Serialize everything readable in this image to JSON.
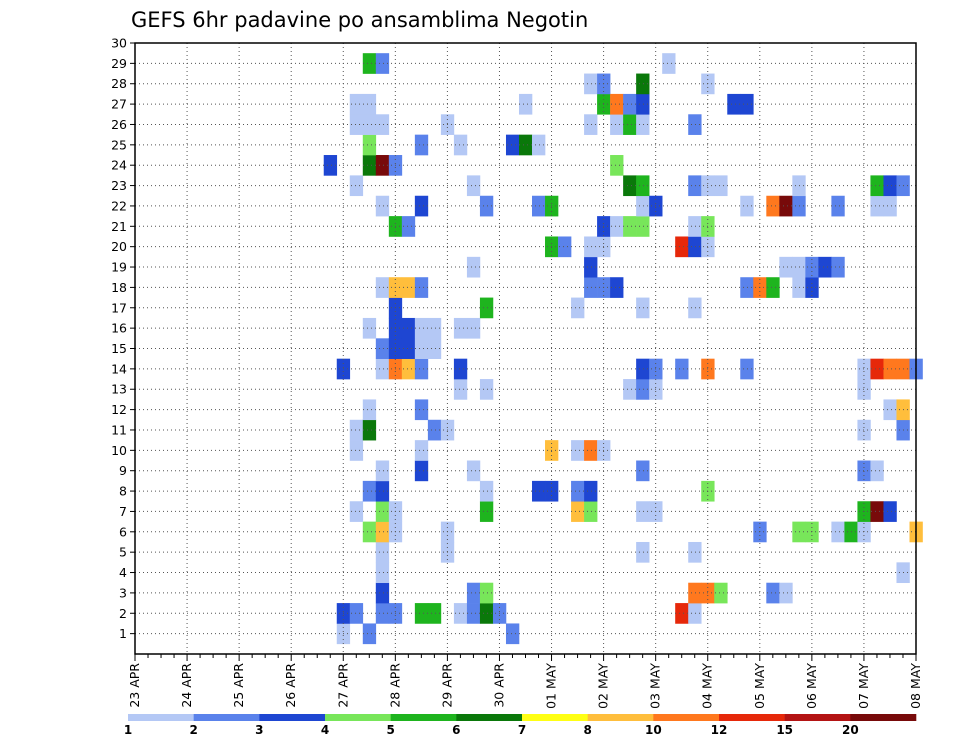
{
  "chart_data": {
    "type": "heatmap",
    "title": "GEFS 6hr padavine po ansamblima Negotin",
    "x_tick_labels": [
      "23 APR",
      "24 APR",
      "25 APR",
      "26 APR",
      "27 APR",
      "28 APR",
      "29 APR",
      "30 APR",
      "01 MAY",
      "02 MAY",
      "03 MAY",
      "04 MAY",
      "05 MAY",
      "06 MAY",
      "07 MAY",
      "08 MAY"
    ],
    "y_tick_labels": [
      "1",
      "2",
      "3",
      "4",
      "5",
      "6",
      "7",
      "8",
      "9",
      "10",
      "11",
      "12",
      "13",
      "14",
      "15",
      "16",
      "17",
      "18",
      "19",
      "20",
      "21",
      "22",
      "23",
      "24",
      "25",
      "26",
      "27",
      "28",
      "29",
      "30"
    ],
    "x_step_hours": 6,
    "ensemble_range": [
      1,
      30
    ],
    "grid": "dotted",
    "colorbar": {
      "position": "bottom",
      "levels": [
        "1",
        "2",
        "3",
        "4",
        "5",
        "6",
        "7",
        "8",
        "10",
        "12",
        "15",
        "20"
      ],
      "colors": [
        "#b4c8f5",
        "#5a82eb",
        "#1e46d2",
        "#78e65a",
        "#1eb41e",
        "#0a780a",
        "#ffff14",
        "#ffbe3c",
        "#ff781e",
        "#e6280a",
        "#b41414",
        "#780a0a"
      ]
    },
    "cells": [
      [
        0,
        16,
        1
      ],
      [
        0,
        18,
        2
      ],
      [
        0,
        29,
        2
      ],
      [
        1,
        16,
        3
      ],
      [
        1,
        17,
        2
      ],
      [
        1,
        19,
        2
      ],
      [
        1,
        20,
        2
      ],
      [
        1,
        22,
        5
      ],
      [
        1,
        23,
        5
      ],
      [
        1,
        25,
        1
      ],
      [
        1,
        26,
        2
      ],
      [
        1,
        27,
        6
      ],
      [
        1,
        28,
        2
      ],
      [
        1,
        42,
        12
      ],
      [
        1,
        43,
        1
      ],
      [
        2,
        19,
        3
      ],
      [
        2,
        26,
        2
      ],
      [
        2,
        27,
        4
      ],
      [
        2,
        43,
        10
      ],
      [
        2,
        44,
        10
      ],
      [
        2,
        45,
        4
      ],
      [
        2,
        49,
        2
      ],
      [
        2,
        50,
        1
      ],
      [
        3,
        19,
        1
      ],
      [
        3,
        59,
        1
      ],
      [
        4,
        19,
        1
      ],
      [
        4,
        24,
        1
      ],
      [
        4,
        39,
        1
      ],
      [
        4,
        43,
        1
      ],
      [
        5,
        18,
        4
      ],
      [
        5,
        19,
        8
      ],
      [
        5,
        20,
        1
      ],
      [
        5,
        24,
        1
      ],
      [
        5,
        48,
        2
      ],
      [
        5,
        51,
        4
      ],
      [
        5,
        52,
        4
      ],
      [
        5,
        54,
        1
      ],
      [
        5,
        55,
        5
      ],
      [
        5,
        56,
        1
      ],
      [
        5,
        60,
        8
      ],
      [
        6,
        17,
        1
      ],
      [
        6,
        19,
        4
      ],
      [
        6,
        20,
        1
      ],
      [
        6,
        27,
        5
      ],
      [
        6,
        34,
        8
      ],
      [
        6,
        35,
        4
      ],
      [
        6,
        39,
        1
      ],
      [
        6,
        40,
        1
      ],
      [
        6,
        56,
        5
      ],
      [
        6,
        57,
        20
      ],
      [
        6,
        58,
        3
      ],
      [
        7,
        18,
        2
      ],
      [
        7,
        19,
        3
      ],
      [
        7,
        27,
        1
      ],
      [
        7,
        31,
        3
      ],
      [
        7,
        32,
        3
      ],
      [
        7,
        34,
        2
      ],
      [
        7,
        35,
        3
      ],
      [
        7,
        44,
        4
      ],
      [
        8,
        19,
        1
      ],
      [
        8,
        22,
        3
      ],
      [
        8,
        26,
        1
      ],
      [
        8,
        39,
        2
      ],
      [
        8,
        56,
        2
      ],
      [
        8,
        57,
        1
      ],
      [
        9,
        17,
        1
      ],
      [
        9,
        22,
        1
      ],
      [
        9,
        32,
        8
      ],
      [
        9,
        34,
        1
      ],
      [
        9,
        35,
        10
      ],
      [
        9,
        36,
        1
      ],
      [
        10,
        17,
        1
      ],
      [
        10,
        18,
        6
      ],
      [
        10,
        23,
        2
      ],
      [
        10,
        24,
        1
      ],
      [
        10,
        56,
        1
      ],
      [
        10,
        59,
        2
      ],
      [
        11,
        18,
        1
      ],
      [
        11,
        22,
        2
      ],
      [
        11,
        58,
        1
      ],
      [
        11,
        59,
        8
      ],
      [
        12,
        25,
        1
      ],
      [
        12,
        27,
        1
      ],
      [
        12,
        38,
        1
      ],
      [
        12,
        39,
        2
      ],
      [
        12,
        40,
        1
      ],
      [
        12,
        56,
        1
      ],
      [
        13,
        16,
        3
      ],
      [
        13,
        19,
        1
      ],
      [
        13,
        20,
        10
      ],
      [
        13,
        21,
        8
      ],
      [
        13,
        22,
        2
      ],
      [
        13,
        25,
        3
      ],
      [
        13,
        39,
        3
      ],
      [
        13,
        40,
        2
      ],
      [
        13,
        42,
        2
      ],
      [
        13,
        44,
        10
      ],
      [
        13,
        47,
        2
      ],
      [
        13,
        56,
        1
      ],
      [
        13,
        57,
        12
      ],
      [
        13,
        58,
        10
      ],
      [
        13,
        59,
        10
      ],
      [
        13,
        60,
        2
      ],
      [
        14,
        19,
        2
      ],
      [
        14,
        20,
        3
      ],
      [
        14,
        21,
        3
      ],
      [
        14,
        22,
        1
      ],
      [
        14,
        23,
        1
      ],
      [
        15,
        18,
        1
      ],
      [
        15,
        20,
        3
      ],
      [
        15,
        21,
        3
      ],
      [
        15,
        22,
        1
      ],
      [
        15,
        23,
        1
      ],
      [
        15,
        25,
        1
      ],
      [
        15,
        26,
        1
      ],
      [
        16,
        20,
        3
      ],
      [
        16,
        27,
        5
      ],
      [
        16,
        34,
        1
      ],
      [
        16,
        39,
        1
      ],
      [
        16,
        43,
        1
      ],
      [
        17,
        19,
        1
      ],
      [
        17,
        20,
        8
      ],
      [
        17,
        21,
        8
      ],
      [
        17,
        22,
        2
      ],
      [
        17,
        35,
        2
      ],
      [
        17,
        36,
        2
      ],
      [
        17,
        37,
        3
      ],
      [
        17,
        47,
        2
      ],
      [
        17,
        48,
        10
      ],
      [
        17,
        49,
        5
      ],
      [
        17,
        51,
        1
      ],
      [
        17,
        52,
        3
      ],
      [
        18,
        26,
        1
      ],
      [
        18,
        35,
        3
      ],
      [
        18,
        50,
        1
      ],
      [
        18,
        51,
        1
      ],
      [
        18,
        52,
        2
      ],
      [
        18,
        53,
        3
      ],
      [
        18,
        54,
        2
      ],
      [
        19,
        32,
        5
      ],
      [
        19,
        33,
        2
      ],
      [
        19,
        35,
        1
      ],
      [
        19,
        36,
        1
      ],
      [
        19,
        42,
        12
      ],
      [
        19,
        43,
        3
      ],
      [
        19,
        44,
        1
      ],
      [
        20,
        20,
        5
      ],
      [
        20,
        21,
        2
      ],
      [
        20,
        36,
        3
      ],
      [
        20,
        37,
        1
      ],
      [
        20,
        38,
        4
      ],
      [
        20,
        39,
        4
      ],
      [
        20,
        43,
        1
      ],
      [
        20,
        44,
        4
      ],
      [
        21,
        19,
        1
      ],
      [
        21,
        22,
        3
      ],
      [
        21,
        27,
        2
      ],
      [
        21,
        31,
        2
      ],
      [
        21,
        32,
        5
      ],
      [
        21,
        39,
        1
      ],
      [
        21,
        40,
        3
      ],
      [
        21,
        47,
        1
      ],
      [
        21,
        49,
        10
      ],
      [
        21,
        50,
        20
      ],
      [
        21,
        51,
        2
      ],
      [
        21,
        54,
        2
      ],
      [
        21,
        57,
        1
      ],
      [
        21,
        58,
        1
      ],
      [
        22,
        17,
        1
      ],
      [
        22,
        26,
        1
      ],
      [
        22,
        38,
        6
      ],
      [
        22,
        39,
        5
      ],
      [
        22,
        43,
        2
      ],
      [
        22,
        44,
        1
      ],
      [
        22,
        45,
        1
      ],
      [
        22,
        51,
        1
      ],
      [
        22,
        57,
        5
      ],
      [
        22,
        58,
        3
      ],
      [
        22,
        59,
        2
      ],
      [
        23,
        15,
        3
      ],
      [
        23,
        18,
        6
      ],
      [
        23,
        19,
        20
      ],
      [
        23,
        20,
        2
      ],
      [
        23,
        37,
        4
      ],
      [
        24,
        18,
        4
      ],
      [
        24,
        22,
        2
      ],
      [
        24,
        25,
        1
      ],
      [
        24,
        29,
        3
      ],
      [
        24,
        30,
        6
      ],
      [
        24,
        31,
        1
      ],
      [
        25,
        17,
        1
      ],
      [
        25,
        18,
        1
      ],
      [
        25,
        19,
        1
      ],
      [
        25,
        24,
        1
      ],
      [
        25,
        35,
        1
      ],
      [
        25,
        37,
        1
      ],
      [
        25,
        38,
        5
      ],
      [
        25,
        39,
        1
      ],
      [
        25,
        43,
        2
      ],
      [
        26,
        17,
        1
      ],
      [
        26,
        18,
        1
      ],
      [
        26,
        30,
        1
      ],
      [
        26,
        36,
        5
      ],
      [
        26,
        37,
        10
      ],
      [
        26,
        38,
        2
      ],
      [
        26,
        39,
        3
      ],
      [
        26,
        46,
        3
      ],
      [
        26,
        47,
        3
      ],
      [
        27,
        35,
        1
      ],
      [
        27,
        36,
        2
      ],
      [
        27,
        39,
        6
      ],
      [
        27,
        44,
        1
      ],
      [
        28,
        18,
        5
      ],
      [
        28,
        19,
        2
      ],
      [
        28,
        41,
        1
      ]
    ]
  }
}
